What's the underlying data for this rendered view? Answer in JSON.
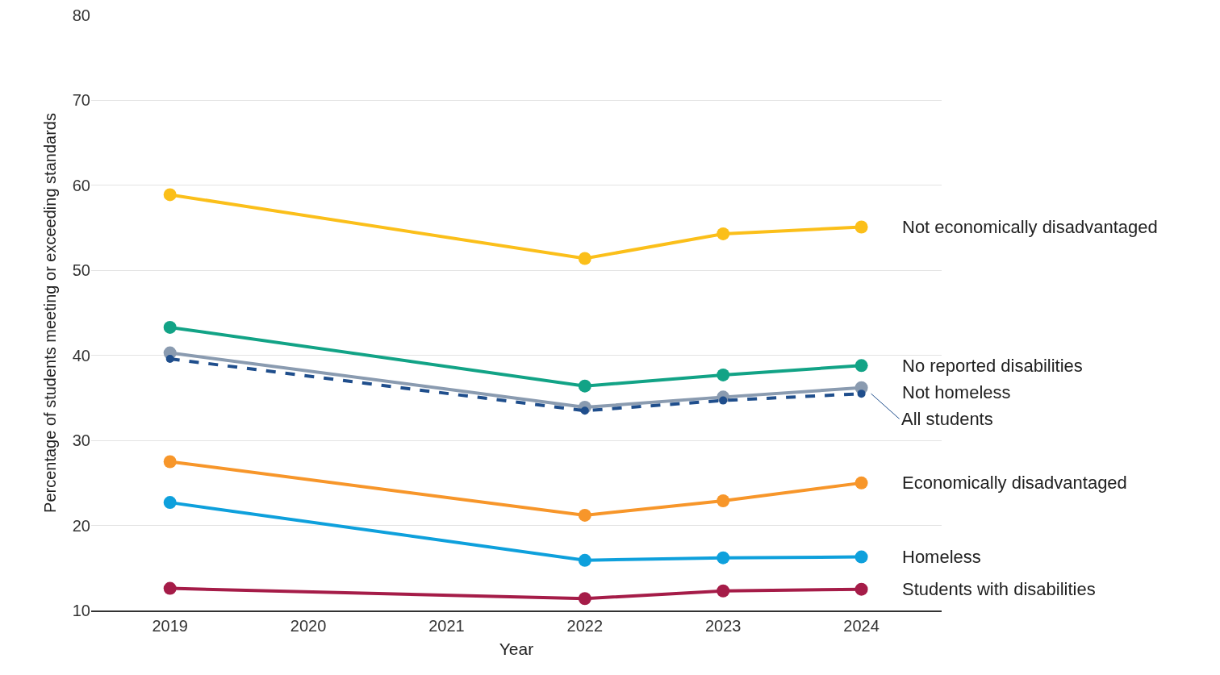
{
  "chart_data": {
    "type": "line",
    "xlabel": "Year",
    "ylabel": "Percentage of students meeting or exceeding standards",
    "x": [
      2019,
      2022,
      2023,
      2024
    ],
    "xlim": [
      2018.43,
      2024.58
    ],
    "xticks": [
      2019,
      2020,
      2021,
      2022,
      2023,
      2024
    ],
    "ylim": [
      10,
      80
    ],
    "yticks": [
      10,
      20,
      30,
      40,
      50,
      60,
      70,
      80
    ],
    "grid": "y",
    "legend": false,
    "marker": "circle",
    "series": [
      {
        "name": "Not economically disadvantaged",
        "color": "#fbbf1a",
        "values": [
          58.9,
          51.4,
          54.3,
          55.1
        ]
      },
      {
        "name": "No reported disabilities",
        "color": "#12a386",
        "values": [
          43.3,
          36.4,
          37.7,
          38.8
        ]
      },
      {
        "name": "Not homeless",
        "color": "#8a9bb0",
        "values": [
          40.3,
          33.9,
          35.1,
          36.2
        ]
      },
      {
        "name": "All students",
        "color": "#1f4e8c",
        "line_style": "dashed",
        "values": [
          39.6,
          33.5,
          34.7,
          35.5
        ]
      },
      {
        "name": "Economically disadvantaged",
        "color": "#f7962a",
        "values": [
          27.5,
          21.2,
          22.9,
          25.0
        ]
      },
      {
        "name": "Homeless",
        "color": "#0ea0dc",
        "values": [
          22.7,
          15.9,
          16.2,
          16.3
        ]
      },
      {
        "name": "Students with disabilities",
        "color": "#a51c48",
        "values": [
          12.6,
          11.4,
          12.3,
          12.5
        ]
      }
    ]
  }
}
